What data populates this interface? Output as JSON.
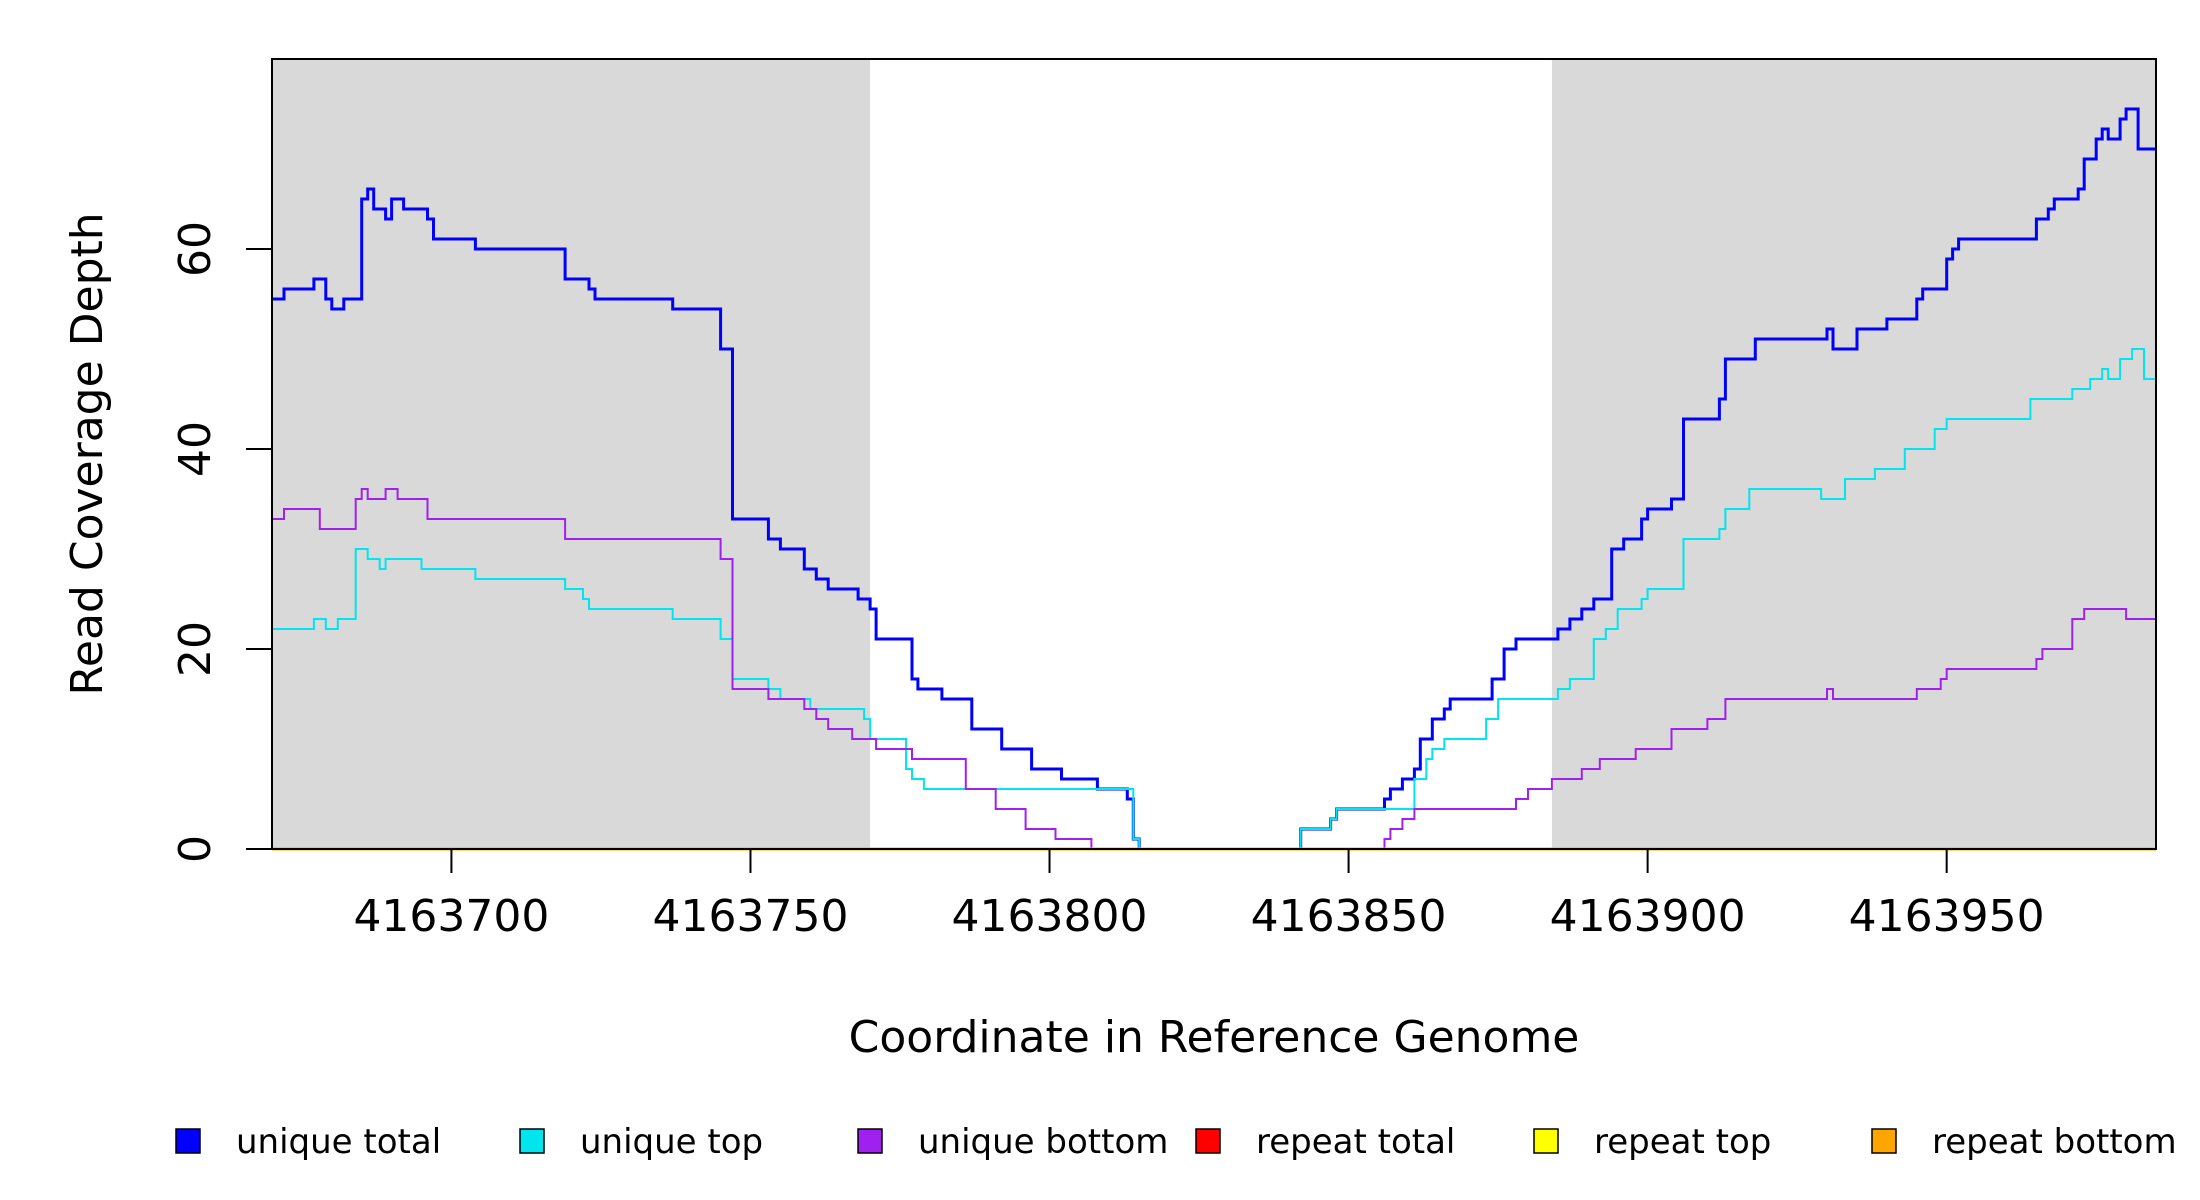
{
  "chart_data": {
    "type": "line",
    "title": "",
    "xlabel": "Coordinate in Reference Genome",
    "ylabel": "Read Coverage Depth",
    "xlim": [
      4163670,
      4163985
    ],
    "ylim": [
      0,
      79
    ],
    "x_ticks": [
      4163700,
      4163750,
      4163800,
      4163850,
      4163900,
      4163950
    ],
    "y_ticks": [
      0,
      20,
      40,
      60
    ],
    "x_tick_labels": [
      "4163700",
      "4163750",
      "4163800",
      "4163850",
      "4163900",
      "4163950"
    ],
    "y_tick_labels": [
      "0",
      "20",
      "40",
      "60"
    ],
    "shaded_regions": [
      {
        "x0": 4163670,
        "x1": 4163770,
        "color": "#d9d9d9"
      },
      {
        "x0": 4163884,
        "x1": 4163985,
        "color": "#d9d9d9"
      }
    ],
    "grid": false,
    "legend_position": "bottom",
    "step": true,
    "series": [
      {
        "name": "unique total",
        "color": "#0000ff",
        "width": 3,
        "points": [
          [
            4163670,
            55
          ],
          [
            4163672,
            56
          ],
          [
            4163677,
            57
          ],
          [
            4163679,
            55
          ],
          [
            4163680,
            54
          ],
          [
            4163682,
            55
          ],
          [
            4163685,
            65
          ],
          [
            4163686,
            66
          ],
          [
            4163687,
            64
          ],
          [
            4163689,
            63
          ],
          [
            4163690,
            65
          ],
          [
            4163692,
            64
          ],
          [
            4163696,
            63
          ],
          [
            4163697,
            61
          ],
          [
            4163704,
            60
          ],
          [
            4163719,
            57
          ],
          [
            4163723,
            56
          ],
          [
            4163724,
            55
          ],
          [
            4163737,
            54
          ],
          [
            4163745,
            50
          ],
          [
            4163747,
            33
          ],
          [
            4163753,
            31
          ],
          [
            4163755,
            30
          ],
          [
            4163759,
            28
          ],
          [
            4163761,
            27
          ],
          [
            4163763,
            26
          ],
          [
            4163768,
            25
          ],
          [
            4163770,
            24
          ],
          [
            4163771,
            21
          ],
          [
            4163777,
            17
          ],
          [
            4163778,
            16
          ],
          [
            4163782,
            15
          ],
          [
            4163787,
            12
          ],
          [
            4163792,
            10
          ],
          [
            4163797,
            8
          ],
          [
            4163802,
            7
          ],
          [
            4163808,
            6
          ],
          [
            4163813,
            5
          ],
          [
            4163814,
            1
          ],
          [
            4163815,
            0
          ],
          [
            4163842,
            2
          ],
          [
            4163847,
            3
          ],
          [
            4163848,
            4
          ],
          [
            4163856,
            5
          ],
          [
            4163857,
            6
          ],
          [
            4163859,
            7
          ],
          [
            4163861,
            8
          ],
          [
            4163862,
            11
          ],
          [
            4163864,
            13
          ],
          [
            4163866,
            14
          ],
          [
            4163867,
            15
          ],
          [
            4163874,
            17
          ],
          [
            4163876,
            20
          ],
          [
            4163878,
            21
          ],
          [
            4163885,
            22
          ],
          [
            4163887,
            23
          ],
          [
            4163889,
            24
          ],
          [
            4163891,
            25
          ],
          [
            4163894,
            30
          ],
          [
            4163896,
            31
          ],
          [
            4163899,
            33
          ],
          [
            4163900,
            34
          ],
          [
            4163904,
            35
          ],
          [
            4163906,
            43
          ],
          [
            4163912,
            45
          ],
          [
            4163913,
            49
          ],
          [
            4163918,
            51
          ],
          [
            4163930,
            52
          ],
          [
            4163931,
            50
          ],
          [
            4163935,
            52
          ],
          [
            4163940,
            53
          ],
          [
            4163945,
            55
          ],
          [
            4163946,
            56
          ],
          [
            4163950,
            59
          ],
          [
            4163951,
            60
          ],
          [
            4163952,
            61
          ],
          [
            4163965,
            63
          ],
          [
            4163967,
            64
          ],
          [
            4163968,
            65
          ],
          [
            4163972,
            66
          ],
          [
            4163973,
            69
          ],
          [
            4163975,
            71
          ],
          [
            4163976,
            72
          ],
          [
            4163977,
            71
          ],
          [
            4163979,
            73
          ],
          [
            4163980,
            74
          ],
          [
            4163982,
            70
          ],
          [
            4163985,
            70
          ]
        ]
      },
      {
        "name": "unique top",
        "color": "#00e5ee",
        "width": 2,
        "points": [
          [
            4163670,
            22
          ],
          [
            4163677,
            23
          ],
          [
            4163679,
            22
          ],
          [
            4163681,
            23
          ],
          [
            4163684,
            30
          ],
          [
            4163686,
            29
          ],
          [
            4163688,
            28
          ],
          [
            4163689,
            29
          ],
          [
            4163695,
            28
          ],
          [
            4163704,
            27
          ],
          [
            4163719,
            26
          ],
          [
            4163722,
            25
          ],
          [
            4163723,
            24
          ],
          [
            4163737,
            23
          ],
          [
            4163745,
            21
          ],
          [
            4163747,
            17
          ],
          [
            4163753,
            16
          ],
          [
            4163755,
            15
          ],
          [
            4163760,
            14
          ],
          [
            4163769,
            13
          ],
          [
            4163770,
            11
          ],
          [
            4163776,
            8
          ],
          [
            4163777,
            7
          ],
          [
            4163779,
            6
          ],
          [
            4163814,
            1
          ],
          [
            4163815,
            0
          ],
          [
            4163842,
            2
          ],
          [
            4163847,
            3
          ],
          [
            4163848,
            4
          ],
          [
            4163856,
            4
          ],
          [
            4163861,
            7
          ],
          [
            4163863,
            9
          ],
          [
            4163864,
            10
          ],
          [
            4163866,
            11
          ],
          [
            4163873,
            13
          ],
          [
            4163875,
            15
          ],
          [
            4163885,
            16
          ],
          [
            4163887,
            17
          ],
          [
            4163891,
            21
          ],
          [
            4163893,
            22
          ],
          [
            4163895,
            24
          ],
          [
            4163899,
            25
          ],
          [
            4163900,
            26
          ],
          [
            4163906,
            31
          ],
          [
            4163912,
            32
          ],
          [
            4163913,
            34
          ],
          [
            4163917,
            36
          ],
          [
            4163929,
            35
          ],
          [
            4163933,
            37
          ],
          [
            4163938,
            38
          ],
          [
            4163943,
            40
          ],
          [
            4163948,
            42
          ],
          [
            4163950,
            43
          ],
          [
            4163964,
            45
          ],
          [
            4163971,
            46
          ],
          [
            4163974,
            47
          ],
          [
            4163976,
            48
          ],
          [
            4163977,
            47
          ],
          [
            4163979,
            49
          ],
          [
            4163981,
            50
          ],
          [
            4163983,
            47
          ],
          [
            4163985,
            47
          ]
        ]
      },
      {
        "name": "unique bottom",
        "color": "#a020f0",
        "width": 2,
        "points": [
          [
            4163670,
            33
          ],
          [
            4163672,
            34
          ],
          [
            4163678,
            32
          ],
          [
            4163684,
            35
          ],
          [
            4163685,
            36
          ],
          [
            4163686,
            35
          ],
          [
            4163689,
            36
          ],
          [
            4163691,
            35
          ],
          [
            4163696,
            33
          ],
          [
            4163719,
            31
          ],
          [
            4163745,
            29
          ],
          [
            4163747,
            16
          ],
          [
            4163753,
            15
          ],
          [
            4163759,
            14
          ],
          [
            4163761,
            13
          ],
          [
            4163763,
            12
          ],
          [
            4163767,
            11
          ],
          [
            4163771,
            10
          ],
          [
            4163777,
            9
          ],
          [
            4163786,
            6
          ],
          [
            4163791,
            4
          ],
          [
            4163796,
            2
          ],
          [
            4163801,
            1
          ],
          [
            4163807,
            0
          ],
          [
            4163856,
            1
          ],
          [
            4163857,
            2
          ],
          [
            4163859,
            3
          ],
          [
            4163861,
            4
          ],
          [
            4163878,
            5
          ],
          [
            4163880,
            6
          ],
          [
            4163884,
            7
          ],
          [
            4163889,
            8
          ],
          [
            4163892,
            9
          ],
          [
            4163898,
            10
          ],
          [
            4163904,
            12
          ],
          [
            4163910,
            13
          ],
          [
            4163913,
            15
          ],
          [
            4163930,
            16
          ],
          [
            4163931,
            15
          ],
          [
            4163945,
            16
          ],
          [
            4163949,
            17
          ],
          [
            4163950,
            18
          ],
          [
            4163965,
            19
          ],
          [
            4163966,
            20
          ],
          [
            4163971,
            23
          ],
          [
            4163973,
            24
          ],
          [
            4163980,
            23
          ],
          [
            4163985,
            23
          ]
        ]
      },
      {
        "name": "repeat total",
        "color": "#ff0000",
        "width": 3,
        "points": [
          [
            4163670,
            0
          ],
          [
            4163985,
            0
          ]
        ]
      },
      {
        "name": "repeat top",
        "color": "#ffff00",
        "width": 3,
        "points": [
          [
            4163670,
            0
          ],
          [
            4163985,
            0
          ]
        ]
      },
      {
        "name": "repeat bottom",
        "color": "#ffa500",
        "width": 3,
        "points": [
          [
            4163670,
            0
          ],
          [
            4163985,
            0
          ]
        ]
      }
    ]
  }
}
